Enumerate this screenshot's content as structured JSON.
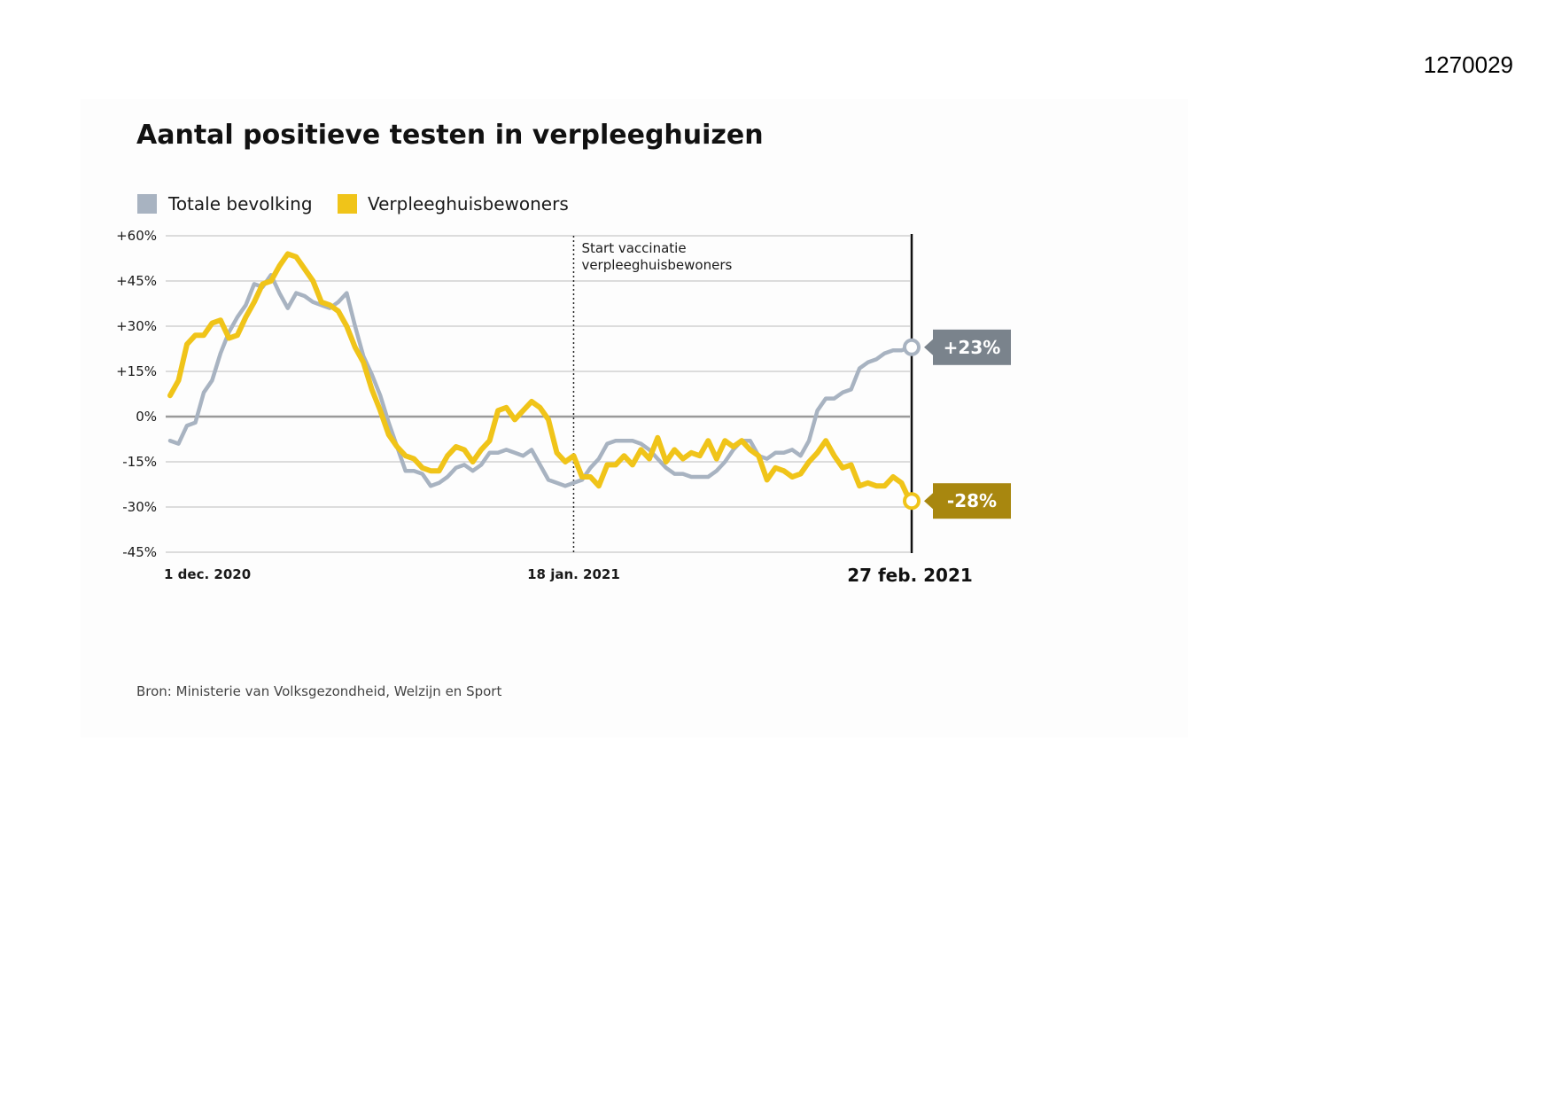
{
  "document_number": "1270029",
  "chart_data": {
    "type": "line",
    "title": "Aantal positieve testen in verpleeghuizen",
    "source": "Bron: Ministerie van Volksgezondheid, Welzijn en Sport",
    "ylim": [
      -45,
      60
    ],
    "yticks": [
      60,
      45,
      30,
      15,
      0,
      -15,
      -30,
      -45
    ],
    "ytick_labels": [
      "+60%",
      "+45%",
      "+30%",
      "+15%",
      "0%",
      "-15%",
      "-30%",
      "-45%"
    ],
    "xlim": [
      0,
      88
    ],
    "x_tick_labels": [
      {
        "x": 0,
        "label": "1 dec. 2020"
      },
      {
        "x": 48,
        "label": "18 jan. 2021"
      },
      {
        "x": 88,
        "label": "27 feb. 2021"
      }
    ],
    "annotation": {
      "x": 48,
      "lines": [
        "Start vaccinatie",
        "verpleeghuisbewoners"
      ]
    },
    "legend": [
      "Totale bevolking",
      "Verpleeghuisbewoners"
    ],
    "series": [
      {
        "name": "Totale bevolking",
        "color": "#a8b3c1",
        "badge_color": "#7a838c",
        "end_label": "+23%",
        "points": [
          [
            0,
            -8
          ],
          [
            1,
            -9
          ],
          [
            2,
            -3
          ],
          [
            3,
            -2
          ],
          [
            4,
            8
          ],
          [
            5,
            12
          ],
          [
            6,
            21
          ],
          [
            7,
            28
          ],
          [
            8,
            33
          ],
          [
            9,
            37
          ],
          [
            10,
            44
          ],
          [
            11,
            43
          ],
          [
            12,
            47
          ],
          [
            13,
            41
          ],
          [
            14,
            36
          ],
          [
            15,
            41
          ],
          [
            16,
            40
          ],
          [
            17,
            38
          ],
          [
            18,
            37
          ],
          [
            19,
            36
          ],
          [
            20,
            38
          ],
          [
            21,
            41
          ],
          [
            22,
            30
          ],
          [
            23,
            20
          ],
          [
            24,
            14
          ],
          [
            25,
            7
          ],
          [
            26,
            -2
          ],
          [
            27,
            -10
          ],
          [
            28,
            -18
          ],
          [
            29,
            -18
          ],
          [
            30,
            -19
          ],
          [
            31,
            -23
          ],
          [
            32,
            -22
          ],
          [
            33,
            -20
          ],
          [
            34,
            -17
          ],
          [
            35,
            -16
          ],
          [
            36,
            -18
          ],
          [
            37,
            -16
          ],
          [
            38,
            -12
          ],
          [
            39,
            -12
          ],
          [
            40,
            -11
          ],
          [
            41,
            -12
          ],
          [
            42,
            -13
          ],
          [
            43,
            -11
          ],
          [
            44,
            -16
          ],
          [
            45,
            -21
          ],
          [
            46,
            -22
          ],
          [
            47,
            -23
          ],
          [
            48,
            -22
          ],
          [
            49,
            -21
          ],
          [
            50,
            -17
          ],
          [
            51,
            -14
          ],
          [
            52,
            -9
          ],
          [
            53,
            -8
          ],
          [
            54,
            -8
          ],
          [
            55,
            -8
          ],
          [
            56,
            -9
          ],
          [
            57,
            -11
          ],
          [
            58,
            -14
          ],
          [
            59,
            -17
          ],
          [
            60,
            -19
          ],
          [
            61,
            -19
          ],
          [
            62,
            -20
          ],
          [
            63,
            -20
          ],
          [
            64,
            -20
          ],
          [
            65,
            -18
          ],
          [
            66,
            -15
          ],
          [
            67,
            -11
          ],
          [
            68,
            -8
          ],
          [
            69,
            -8
          ],
          [
            70,
            -13
          ],
          [
            71,
            -14
          ],
          [
            72,
            -12
          ],
          [
            73,
            -12
          ],
          [
            74,
            -11
          ],
          [
            75,
            -13
          ],
          [
            76,
            -8
          ],
          [
            77,
            2
          ],
          [
            78,
            6
          ],
          [
            79,
            6
          ],
          [
            80,
            8
          ],
          [
            81,
            9
          ],
          [
            82,
            16
          ],
          [
            83,
            18
          ],
          [
            84,
            19
          ],
          [
            85,
            21
          ],
          [
            86,
            22
          ],
          [
            87,
            22
          ],
          [
            88,
            23
          ]
        ]
      },
      {
        "name": "Verpleeghuisbewoners",
        "color": "#f0c419",
        "badge_color": "#a8870f",
        "end_label": "-28%",
        "points": [
          [
            0,
            7
          ],
          [
            1,
            12
          ],
          [
            2,
            24
          ],
          [
            3,
            27
          ],
          [
            4,
            27
          ],
          [
            5,
            31
          ],
          [
            6,
            32
          ],
          [
            7,
            26
          ],
          [
            8,
            27
          ],
          [
            9,
            33
          ],
          [
            10,
            38
          ],
          [
            11,
            44
          ],
          [
            12,
            45
          ],
          [
            13,
            50
          ],
          [
            14,
            54
          ],
          [
            15,
            53
          ],
          [
            16,
            49
          ],
          [
            17,
            45
          ],
          [
            18,
            38
          ],
          [
            19,
            37
          ],
          [
            20,
            35
          ],
          [
            21,
            30
          ],
          [
            22,
            23
          ],
          [
            23,
            18
          ],
          [
            24,
            9
          ],
          [
            25,
            2
          ],
          [
            26,
            -6
          ],
          [
            27,
            -10
          ],
          [
            28,
            -13
          ],
          [
            29,
            -14
          ],
          [
            30,
            -17
          ],
          [
            31,
            -18
          ],
          [
            32,
            -18
          ],
          [
            33,
            -13
          ],
          [
            34,
            -10
          ],
          [
            35,
            -11
          ],
          [
            36,
            -15
          ],
          [
            37,
            -11
          ],
          [
            38,
            -8
          ],
          [
            39,
            2
          ],
          [
            40,
            3
          ],
          [
            41,
            -1
          ],
          [
            42,
            2
          ],
          [
            43,
            5
          ],
          [
            44,
            3
          ],
          [
            45,
            -1
          ],
          [
            46,
            -12
          ],
          [
            47,
            -15
          ],
          [
            48,
            -13
          ],
          [
            49,
            -20
          ],
          [
            50,
            -20
          ],
          [
            51,
            -23
          ],
          [
            52,
            -16
          ],
          [
            53,
            -16
          ],
          [
            54,
            -13
          ],
          [
            55,
            -16
          ],
          [
            56,
            -11
          ],
          [
            57,
            -14
          ],
          [
            58,
            -7
          ],
          [
            59,
            -15
          ],
          [
            60,
            -11
          ],
          [
            61,
            -14
          ],
          [
            62,
            -12
          ],
          [
            63,
            -13
          ],
          [
            64,
            -8
          ],
          [
            65,
            -14
          ],
          [
            66,
            -8
          ],
          [
            67,
            -10
          ],
          [
            68,
            -8
          ],
          [
            69,
            -11
          ],
          [
            70,
            -13
          ],
          [
            71,
            -21
          ],
          [
            72,
            -17
          ],
          [
            73,
            -18
          ],
          [
            74,
            -20
          ],
          [
            75,
            -19
          ],
          [
            76,
            -15
          ],
          [
            77,
            -12
          ],
          [
            78,
            -8
          ],
          [
            79,
            -13
          ],
          [
            80,
            -17
          ],
          [
            81,
            -16
          ],
          [
            82,
            -23
          ],
          [
            83,
            -22
          ],
          [
            84,
            -23
          ],
          [
            85,
            -23
          ],
          [
            86,
            -20
          ],
          [
            87,
            -22
          ],
          [
            88,
            -28
          ]
        ]
      }
    ]
  }
}
